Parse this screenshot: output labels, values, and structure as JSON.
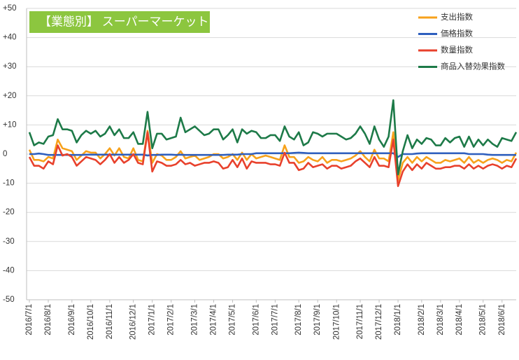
{
  "chart_data": {
    "type": "line",
    "title": "【業態別】 スーパーマーケット",
    "categories": [
      "2016/7/1",
      null,
      null,
      null,
      "2016/8/1",
      null,
      null,
      null,
      null,
      "2016/9/1",
      null,
      null,
      null,
      "2016/10/1",
      null,
      null,
      null,
      "2016/11/1",
      null,
      null,
      null,
      null,
      "2016/12/1",
      null,
      null,
      null,
      "2017/1/1",
      null,
      null,
      null,
      "2017/2/1",
      null,
      null,
      null,
      null,
      "2017/3/1",
      null,
      null,
      null,
      "2017/4/1",
      null,
      null,
      null,
      "2017/5/1",
      null,
      null,
      null,
      null,
      "2017/6/1",
      null,
      null,
      null,
      "2017/7/1",
      null,
      null,
      null,
      null,
      "2017/8/1",
      null,
      null,
      null,
      "2017/9/1",
      null,
      null,
      null,
      "2017/10/1",
      null,
      null,
      null,
      null,
      "2017/11/1",
      null,
      null,
      null,
      "2017/12/1",
      null,
      null,
      null,
      "2018/1/1",
      null,
      null,
      null,
      null,
      "2018/2/1",
      null,
      null,
      null,
      "2018/3/1",
      null,
      null,
      null,
      "2018/4/1",
      null,
      null,
      null,
      null,
      "2018/5/1",
      null,
      null,
      null,
      "2018/6/1",
      null,
      null,
      null
    ],
    "series": [
      {
        "name": "支出指数",
        "color": "#f7a21b",
        "values": [
          1.5,
          -2,
          -2,
          -2.5,
          -1,
          -1.5,
          5,
          2,
          1.5,
          1,
          -2,
          -0.5,
          1,
          0.5,
          0.5,
          -1.5,
          0,
          2,
          -0.5,
          2,
          -1,
          -1.5,
          2,
          -2,
          -2.5,
          8,
          -3,
          0,
          -0.5,
          -2,
          -2,
          -1,
          1,
          -1.5,
          -1,
          -0.5,
          -2,
          -1.5,
          -1,
          0,
          0,
          -1.5,
          -1,
          0,
          -2,
          0.5,
          -2,
          0,
          -1.5,
          -1,
          -0.5,
          -1,
          -1.5,
          -2,
          3,
          -1,
          -1,
          -3,
          -2.5,
          -1,
          -2,
          -2.5,
          -1,
          -3,
          -2,
          -2,
          -2.5,
          -2,
          -1.5,
          -0.5,
          1,
          -1,
          -2.5,
          1.5,
          -1.5,
          -1.5,
          -2.5,
          7.5,
          -9,
          -3,
          -1,
          -3,
          -1,
          -2.5,
          -1,
          -2,
          -3,
          -3,
          -2,
          -2.5,
          -2,
          -1.5,
          -3,
          -1,
          -3,
          -2,
          -3,
          -2,
          -1.5,
          -2,
          -3,
          -2,
          -2.5,
          0.5
        ]
      },
      {
        "name": "価格指数",
        "color": "#2e5fbe",
        "values": [
          0,
          0,
          0.2,
          0,
          -0.3,
          -0.3,
          -0.3,
          -0.3,
          -0.3,
          -0.3,
          -0.3,
          -0.3,
          -0.2,
          -0.2,
          -0.2,
          -0.2,
          -0.2,
          -0.2,
          -0.2,
          -0.2,
          -0.2,
          -0.2,
          -0.2,
          -0.2,
          -0.2,
          -0.5,
          -0.3,
          -0.3,
          -0.2,
          -0.2,
          -0.2,
          -0.3,
          -0.2,
          -0.3,
          -0.3,
          -0.3,
          -0.3,
          -0.3,
          -0.3,
          -0.3,
          -0.3,
          -0.3,
          -0.2,
          -0.2,
          -0.2,
          0,
          0,
          0,
          0.3,
          0.3,
          0.3,
          0.3,
          0.3,
          0.3,
          0.3,
          0.3,
          0.4,
          0.5,
          0.4,
          0.3,
          0.3,
          0.3,
          0.3,
          0.3,
          0.3,
          0.3,
          0.3,
          0.3,
          0.3,
          0.3,
          0.3,
          0.3,
          0.3,
          0.3,
          0.3,
          0.3,
          0.3,
          0.3,
          -1,
          0,
          0,
          0,
          0.2,
          0.3,
          0.3,
          0.3,
          0.3,
          0.3,
          0.3,
          0.3,
          0.3,
          0.3,
          0.3,
          0,
          0,
          0,
          0,
          -0.2,
          -0.3,
          -0.3,
          -0.3,
          -0.3,
          -0.3,
          -0.3
        ]
      },
      {
        "name": "数量指数",
        "color": "#e8412c",
        "values": [
          -1,
          -4,
          -4,
          -5,
          -2.5,
          -3.5,
          3,
          -0.5,
          0,
          -1,
          -4,
          -2.5,
          -1,
          -1.5,
          -2,
          -3.5,
          -2,
          0,
          -3,
          -1,
          -3,
          -2,
          0,
          -3,
          -3.5,
          7.5,
          -6,
          -2.5,
          -3,
          -4,
          -4,
          -3.5,
          -2,
          -3.5,
          -3,
          -4,
          -3.5,
          -3,
          -3,
          -2.5,
          -3,
          -5,
          -4.5,
          -2,
          -4.5,
          -1.5,
          -5,
          -2.5,
          -3,
          -3,
          -3,
          -3.5,
          -3.5,
          -4,
          0.5,
          -3,
          -3,
          -5.5,
          -5,
          -3,
          -4.5,
          -4,
          -3.5,
          -5,
          -4,
          -4,
          -5,
          -4.5,
          -4,
          -2.5,
          -1.5,
          -3,
          -4.5,
          -1,
          -4,
          -4,
          -4.5,
          5,
          -11,
          -6,
          -3.5,
          -5.5,
          -3.5,
          -5,
          -3,
          -4,
          -5,
          -5,
          -4.5,
          -4.5,
          -4,
          -4,
          -5,
          -3.5,
          -5,
          -4,
          -5,
          -4,
          -3.5,
          -4,
          -5,
          -4,
          -4.5,
          -1.5
        ]
      },
      {
        "name": "商品入替効果指数",
        "color": "#1d7a48",
        "values": [
          7.5,
          3,
          4,
          3.5,
          6,
          6.5,
          12,
          8.5,
          8.5,
          8,
          4,
          6.5,
          8,
          7,
          8,
          6,
          7,
          9.5,
          6.5,
          8.5,
          5.5,
          5.5,
          7.5,
          3.5,
          3.5,
          14.5,
          2,
          7,
          7,
          5,
          5.5,
          6,
          12.5,
          7.5,
          8.5,
          9.5,
          8,
          6.5,
          7,
          8.5,
          8.5,
          5,
          6.5,
          8.5,
          4,
          8.5,
          7,
          8,
          7.5,
          5.5,
          5.5,
          6.5,
          6.5,
          4.5,
          9.5,
          6,
          5,
          7.5,
          3,
          4,
          7.5,
          7,
          6,
          7,
          7,
          7,
          6,
          5,
          5.5,
          7,
          9.5,
          7,
          3.5,
          9.5,
          5,
          2.5,
          6,
          18.5,
          -7,
          1,
          6.5,
          2,
          5,
          3.5,
          5.5,
          5,
          3,
          3,
          5.5,
          4,
          5.5,
          6,
          2.5,
          6,
          2.5,
          5,
          3,
          5,
          3.5,
          2.5,
          5.5,
          5,
          4.5,
          7.5
        ]
      }
    ],
    "ylim": [
      -50,
      50
    ],
    "yticks": [
      -50,
      -40,
      -30,
      -20,
      -10,
      0,
      {
        "value": 10,
        "label": "+10"
      },
      {
        "value": 20,
        "label": "+20"
      },
      {
        "value": 30,
        "label": "+30"
      },
      {
        "value": 40,
        "label": "+40"
      },
      {
        "value": 50,
        "label": "+50"
      }
    ],
    "grid": true,
    "legend": "top-right"
  }
}
